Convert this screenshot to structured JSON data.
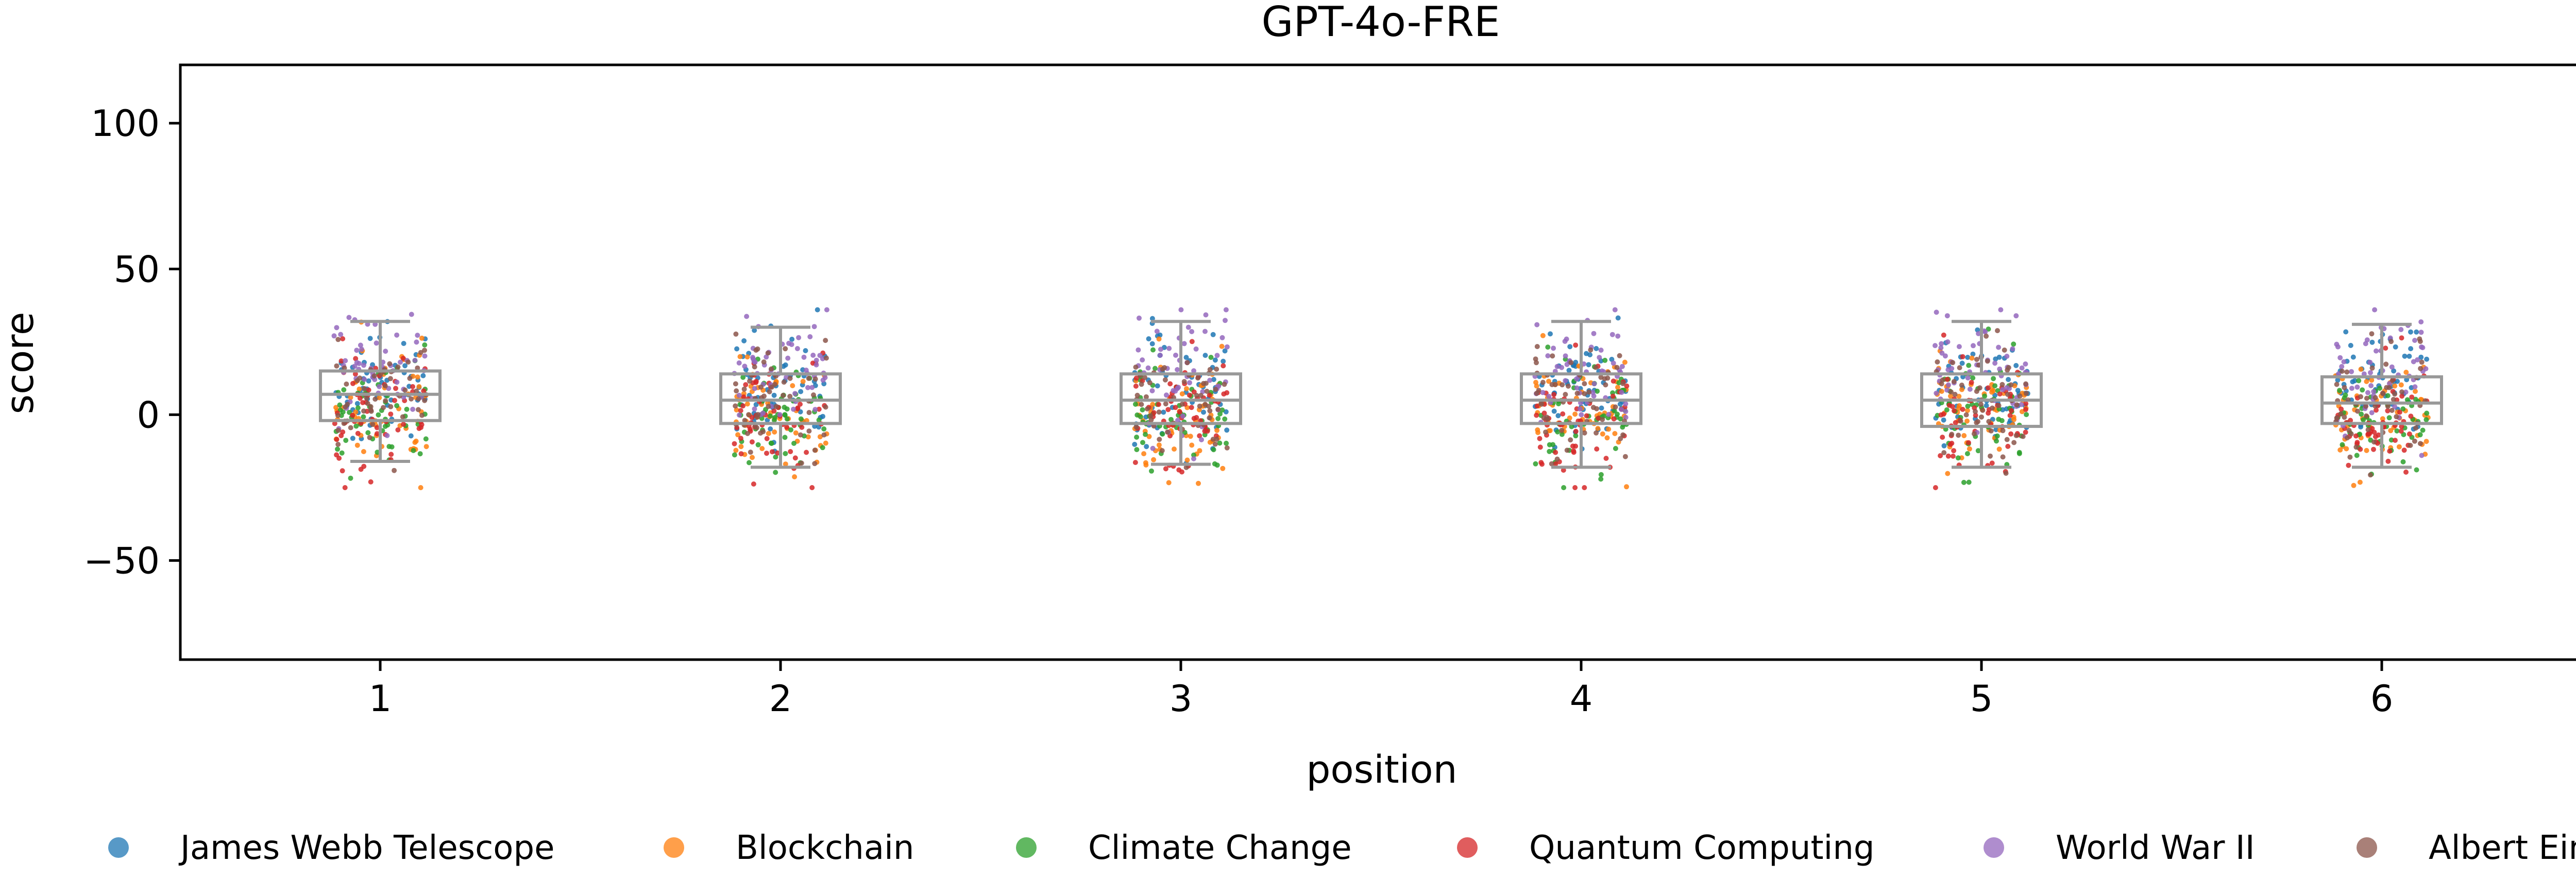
{
  "chart_data": {
    "type": "scatter",
    "subtype": "strip plot with box plots",
    "title": "GPT-4o-FRE",
    "xlabel": "position",
    "ylabel": "score",
    "categories": [
      "1",
      "2",
      "3",
      "4",
      "5",
      "6"
    ],
    "ylim": [
      -84,
      120
    ],
    "yticks": [
      100,
      50,
      0,
      -50
    ],
    "ytick_labels": [
      "100",
      "50",
      "0",
      "−50"
    ],
    "grid": false,
    "legend_position": "bottom",
    "box_color": "#999999",
    "boxes": [
      {
        "category": "1",
        "whisker_low": -16,
        "q1": -2,
        "median": 7,
        "q3": 15,
        "whisker_high": 32
      },
      {
        "category": "2",
        "whisker_low": -18,
        "q1": -3,
        "median": 5,
        "q3": 14,
        "whisker_high": 30
      },
      {
        "category": "3",
        "whisker_low": -17,
        "q1": -3,
        "median": 5,
        "q3": 14,
        "whisker_high": 32
      },
      {
        "category": "4",
        "whisker_low": -18,
        "q1": -3,
        "median": 5,
        "q3": 14,
        "whisker_high": 32
      },
      {
        "category": "5",
        "whisker_low": -18,
        "q1": -4,
        "median": 5,
        "q3": 14,
        "whisker_high": 32
      },
      {
        "category": "6",
        "whisker_low": -18,
        "q1": -3,
        "median": 4,
        "q3": 13,
        "whisker_high": 31
      }
    ],
    "series": [
      {
        "name": "James Webb Telescope",
        "color": "#1f77b4",
        "mean_by_position": [
          10,
          9,
          9,
          9,
          9,
          8
        ]
      },
      {
        "name": "Blockchain",
        "color": "#ff7f0e",
        "mean_by_position": [
          2,
          0,
          0,
          0,
          0,
          0
        ]
      },
      {
        "name": "Climate Change",
        "color": "#2ca02c",
        "mean_by_position": [
          -1,
          -2,
          -2,
          -2,
          -2,
          -2
        ]
      },
      {
        "name": "Quantum Computing",
        "color": "#d62728",
        "mean_by_position": [
          1,
          0,
          0,
          0,
          -1,
          -1
        ]
      },
      {
        "name": "World War II",
        "color": "#9467bd",
        "mean_by_position": [
          16,
          15,
          15,
          15,
          15,
          14
        ]
      },
      {
        "name": "Albert Einstein",
        "color": "#8c564b",
        "mean_by_position": [
          6,
          5,
          5,
          5,
          4,
          4
        ]
      }
    ]
  }
}
